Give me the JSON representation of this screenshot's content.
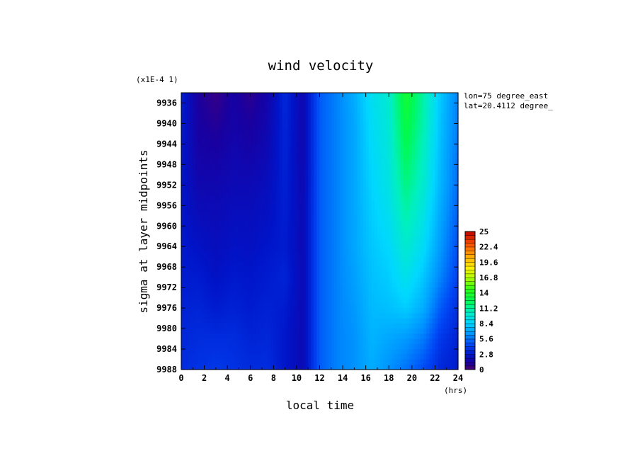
{
  "chart_data": {
    "type": "heatmap",
    "title": "wind velocity",
    "xlabel": "local time",
    "ylabel": "sigma at layer midpoints",
    "x_unit": "(hrs)",
    "y_scale_note": "(x1E-4 1)",
    "annotations": [
      "lon=75 degree_east",
      "lat=20.4112 degree_"
    ],
    "xlim": [
      0,
      24
    ],
    "ylim": [
      9988,
      9934
    ],
    "x_ticks": [
      "0",
      "2",
      "4",
      "6",
      "8",
      "10",
      "12",
      "14",
      "16",
      "18",
      "20",
      "22",
      "24"
    ],
    "y_ticks": [
      "9936",
      "9940",
      "9944",
      "9948",
      "9952",
      "9956",
      "9960",
      "9964",
      "9968",
      "9972",
      "9976",
      "9980",
      "9984",
      "9988"
    ],
    "x": [
      0,
      1.5,
      3,
      4.5,
      6,
      7.5,
      9,
      10.5,
      12,
      13.5,
      15,
      16.5,
      18,
      19.5,
      21,
      22.5,
      24
    ],
    "y": [
      9934,
      9940,
      9946,
      9952,
      9958,
      9964,
      9970,
      9976,
      9982,
      9988
    ],
    "z": [
      [
        3.2,
        1.2,
        0.6,
        1.4,
        0.8,
        1.6,
        3.5,
        1.8,
        5.0,
        6.0,
        7.2,
        9.0,
        10.0,
        13.5,
        11.0,
        8.0,
        6.0
      ],
      [
        3.0,
        1.3,
        1.0,
        1.5,
        1.2,
        1.8,
        3.4,
        1.8,
        5.0,
        6.0,
        7.0,
        8.8,
        9.8,
        13.0,
        10.8,
        7.8,
        5.8
      ],
      [
        2.9,
        1.5,
        1.4,
        1.8,
        1.6,
        2.0,
        3.3,
        1.8,
        5.0,
        6.0,
        7.0,
        8.6,
        9.6,
        12.4,
        10.4,
        7.6,
        5.6
      ],
      [
        2.8,
        1.8,
        1.8,
        2.0,
        2.0,
        2.3,
        3.2,
        1.9,
        5.0,
        6.0,
        7.0,
        8.4,
        9.4,
        11.6,
        10.0,
        7.4,
        5.4
      ],
      [
        2.8,
        2.2,
        2.1,
        2.3,
        2.3,
        2.5,
        3.1,
        2.0,
        5.0,
        6.0,
        7.0,
        8.2,
        9.0,
        10.8,
        9.4,
        7.0,
        5.0
      ],
      [
        2.9,
        2.6,
        2.3,
        2.6,
        2.5,
        2.8,
        3.0,
        2.0,
        5.0,
        6.0,
        7.0,
        8.0,
        8.6,
        10.0,
        8.8,
        6.6,
        4.6
      ],
      [
        3.0,
        3.0,
        2.6,
        2.9,
        2.8,
        3.0,
        3.3,
        2.0,
        5.0,
        6.0,
        6.8,
        7.8,
        8.2,
        9.2,
        8.0,
        6.0,
        4.2
      ],
      [
        3.2,
        3.3,
        3.0,
        3.2,
        3.0,
        3.2,
        3.0,
        2.0,
        5.0,
        6.0,
        6.6,
        7.6,
        7.8,
        8.2,
        7.2,
        5.0,
        3.6
      ],
      [
        3.4,
        3.6,
        3.6,
        3.6,
        3.3,
        3.4,
        2.8,
        2.0,
        5.0,
        6.0,
        6.4,
        7.4,
        7.0,
        6.6,
        5.8,
        4.0,
        3.2
      ],
      [
        3.6,
        3.8,
        4.0,
        3.8,
        3.6,
        3.6,
        2.8,
        2.0,
        5.0,
        6.0,
        6.4,
        7.2,
        6.4,
        5.6,
        4.6,
        3.4,
        3.0
      ]
    ],
    "colorbar": {
      "min": 0,
      "max": 25,
      "tick_labels": [
        "0",
        "2.8",
        "5.6",
        "8.4",
        "11.2",
        "14",
        "16.8",
        "19.6",
        "22.4",
        "25"
      ],
      "placement": "right"
    },
    "grid": false
  }
}
